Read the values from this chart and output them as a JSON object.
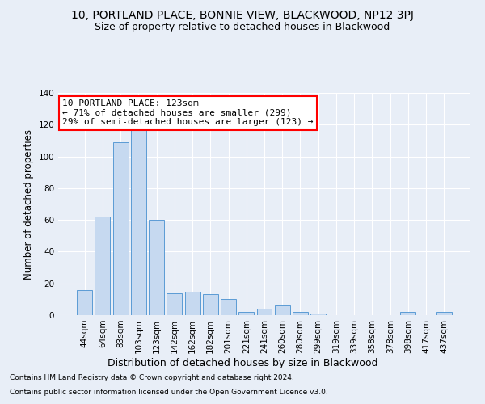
{
  "title": "10, PORTLAND PLACE, BONNIE VIEW, BLACKWOOD, NP12 3PJ",
  "subtitle": "Size of property relative to detached houses in Blackwood",
  "xlabel": "Distribution of detached houses by size in Blackwood",
  "ylabel": "Number of detached properties",
  "categories": [
    "44sqm",
    "64sqm",
    "83sqm",
    "103sqm",
    "123sqm",
    "142sqm",
    "162sqm",
    "182sqm",
    "201sqm",
    "221sqm",
    "241sqm",
    "260sqm",
    "280sqm",
    "299sqm",
    "319sqm",
    "339sqm",
    "358sqm",
    "378sqm",
    "398sqm",
    "417sqm",
    "437sqm"
  ],
  "values": [
    16,
    62,
    109,
    117,
    60,
    14,
    15,
    13,
    10,
    2,
    4,
    6,
    2,
    1,
    0,
    0,
    0,
    0,
    2,
    0,
    2
  ],
  "bar_color": "#c6d9f0",
  "bar_edge_color": "#5b9bd5",
  "annotation_text": "10 PORTLAND PLACE: 123sqm\n← 71% of detached houses are smaller (299)\n29% of semi-detached houses are larger (123) →",
  "annotation_box_color": "white",
  "annotation_box_edge_color": "red",
  "ylim": [
    0,
    140
  ],
  "yticks": [
    0,
    20,
    40,
    60,
    80,
    100,
    120,
    140
  ],
  "background_color": "#e8eef7",
  "plot_background_color": "#e8eef7",
  "grid_color": "white",
  "footer_line1": "Contains HM Land Registry data © Crown copyright and database right 2024.",
  "footer_line2": "Contains public sector information licensed under the Open Government Licence v3.0.",
  "title_fontsize": 10,
  "subtitle_fontsize": 9,
  "xlabel_fontsize": 9,
  "ylabel_fontsize": 8.5,
  "tick_fontsize": 7.5,
  "annotation_fontsize": 8,
  "footer_fontsize": 6.5
}
